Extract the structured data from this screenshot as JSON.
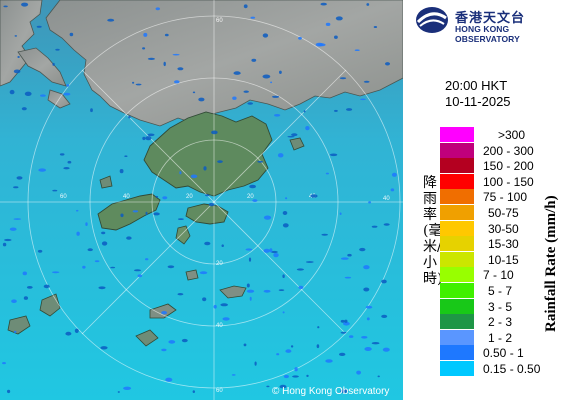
{
  "map": {
    "copyright": "© Hong Kong Observatory",
    "range_ring_labels": [
      "20",
      "20",
      "20",
      "40",
      "40",
      "40",
      "40",
      "60",
      "60",
      "60"
    ]
  },
  "header": {
    "logo_zh": "香港天文台",
    "logo_en": "HONG KONG OBSERVATORY",
    "time": "20:00 HKT",
    "date": "10-11-2025"
  },
  "legend": {
    "title_zh": "降雨率(毫米/小時)",
    "title_en": "Rainfall Rate (mm/h)",
    "bins": [
      {
        "label": ">300",
        "color": "#ff00ff"
      },
      {
        "label": "200 - 300",
        "color": "#c0007c"
      },
      {
        "label": "150 - 200",
        "color": "#b40020"
      },
      {
        "label": "100 - 150",
        "color": "#ff0000"
      },
      {
        "label": "75 - 100",
        "color": "#f06e00"
      },
      {
        "label": "50-75",
        "color": "#f0a000"
      },
      {
        "label": "30-50",
        "color": "#ffc800"
      },
      {
        "label": "15-30",
        "color": "#e6d200"
      },
      {
        "label": "10-15",
        "color": "#cce600"
      },
      {
        "label": "7 - 10",
        "color": "#98ff00"
      },
      {
        "label": "5 - 7",
        "color": "#40f000"
      },
      {
        "label": "3 - 5",
        "color": "#18c818"
      },
      {
        "label": "2 - 3",
        "color": "#1e9646"
      },
      {
        "label": "1 - 2",
        "color": "#5a96ff"
      },
      {
        "label": "0.50 - 1",
        "color": "#1e78ff"
      },
      {
        "label": "0.15 - 0.50",
        "color": "#00c8ff"
      }
    ]
  }
}
